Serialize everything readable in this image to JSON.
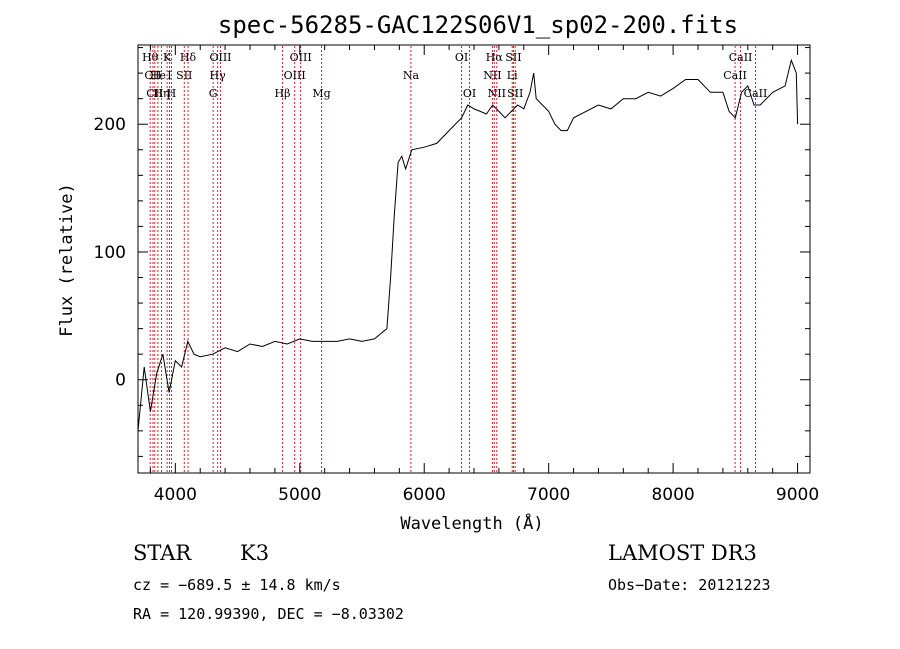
{
  "chart_data": {
    "type": "line",
    "title": "spec-56285-GAC122S06V1_sp02-200.fits",
    "xlabel": "Wavelength (Å)",
    "ylabel": "Flux (relative)",
    "xlim": [
      3700,
      9100
    ],
    "ylim": [
      -73,
      262
    ],
    "xticks": [
      4000,
      5000,
      6000,
      7000,
      8000,
      9000
    ],
    "yticks": [
      0,
      100,
      200
    ],
    "series": [
      {
        "name": "flux",
        "x": [
          3700,
          3750,
          3800,
          3850,
          3900,
          3950,
          4000,
          4050,
          4100,
          4150,
          4200,
          4300,
          4400,
          4500,
          4600,
          4700,
          4800,
          4900,
          5000,
          5100,
          5200,
          5300,
          5400,
          5500,
          5600,
          5650,
          5700,
          5730,
          5760,
          5790,
          5820,
          5850,
          5900,
          6000,
          6100,
          6200,
          6300,
          6350,
          6400,
          6450,
          6500,
          6550,
          6600,
          6650,
          6700,
          6750,
          6800,
          6850,
          6880,
          6900,
          6950,
          7000,
          7050,
          7100,
          7150,
          7200,
          7300,
          7400,
          7500,
          7600,
          7700,
          7800,
          7900,
          8000,
          8100,
          8200,
          8300,
          8400,
          8450,
          8500,
          8550,
          8600,
          8650,
          8700,
          8800,
          8900,
          8950,
          8990,
          9000
        ],
        "y": [
          -40,
          10,
          -25,
          5,
          20,
          -10,
          15,
          10,
          30,
          20,
          18,
          20,
          25,
          22,
          28,
          26,
          30,
          28,
          32,
          30,
          30,
          30,
          32,
          30,
          32,
          36,
          40,
          80,
          130,
          170,
          175,
          165,
          180,
          182,
          185,
          195,
          205,
          215,
          212,
          210,
          208,
          215,
          210,
          205,
          210,
          215,
          212,
          225,
          240,
          220,
          215,
          210,
          200,
          195,
          195,
          205,
          210,
          215,
          212,
          220,
          220,
          225,
          222,
          228,
          235,
          235,
          225,
          225,
          210,
          205,
          225,
          230,
          215,
          215,
          225,
          230,
          250,
          240,
          200
        ]
      }
    ],
    "lines": [
      {
        "x": 3798,
        "label": "Hθ",
        "row": 0
      },
      {
        "x": 3820,
        "label": "CII",
        "row": 1
      },
      {
        "x": 3835,
        "label": "CII",
        "row": 2
      },
      {
        "x": 3860,
        "label": "He",
        "row": 1
      },
      {
        "x": 3889,
        "label": "Hη",
        "row": 2
      },
      {
        "x": 3934,
        "label": "K",
        "row": 0
      },
      {
        "x": 3953,
        "label": "I",
        "row": 1
      },
      {
        "x": 3969,
        "label": "H",
        "row": 2
      },
      {
        "x": 4072,
        "label": "SII",
        "row": 1
      },
      {
        "x": 4102,
        "label": "Hδ",
        "row": 0
      },
      {
        "x": 4304,
        "label": "G",
        "row": 2
      },
      {
        "x": 4340,
        "label": "Hγ",
        "row": 1
      },
      {
        "x": 4363,
        "label": "OIII",
        "row": 0
      },
      {
        "x": 4861,
        "label": "Hβ",
        "row": 2
      },
      {
        "x": 4959,
        "label": "OIII",
        "row": 1
      },
      {
        "x": 5007,
        "label": "OIII",
        "row": 0
      },
      {
        "x": 5175,
        "label": "Mg",
        "row": 2
      },
      {
        "x": 5893,
        "label": "Na",
        "row": 1
      },
      {
        "x": 6300,
        "label": "OI",
        "row": 0
      },
      {
        "x": 6364,
        "label": "OI",
        "row": 2
      },
      {
        "x": 6548,
        "label": "NII",
        "row": 1
      },
      {
        "x": 6563,
        "label": "Hα",
        "row": 0
      },
      {
        "x": 6583,
        "label": "NII",
        "row": 2
      },
      {
        "x": 6707,
        "label": "Li",
        "row": 1
      },
      {
        "x": 6717,
        "label": "SII",
        "row": 0
      },
      {
        "x": 6731,
        "label": "SII",
        "row": 2
      },
      {
        "x": 8498,
        "label": "CaII",
        "row": 1
      },
      {
        "x": 8542,
        "label": "CaII",
        "row": 0
      },
      {
        "x": 8662,
        "label": "CaII",
        "row": 2
      }
    ]
  },
  "info": {
    "class": "STAR",
    "subclass": "K3",
    "survey": "LAMOST DR3",
    "cz": "cz = −689.5 ± 14.8 km/s",
    "obs_date": "Obs−Date: 20121223",
    "coords": "RA = 120.99390, DEC =  −8.03302"
  },
  "colors": {
    "line_marker": "#cc2222",
    "spectrum": "#000000"
  }
}
